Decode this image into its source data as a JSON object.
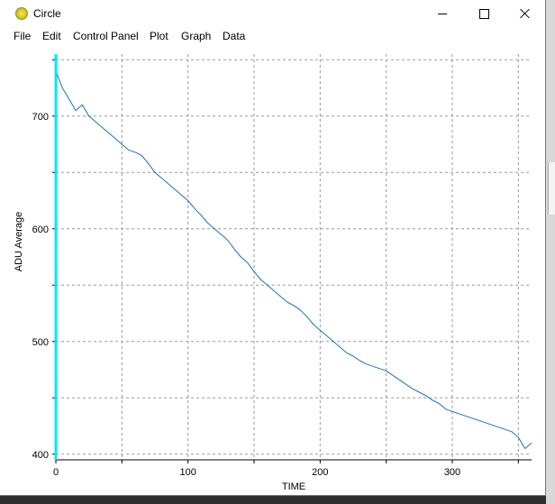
{
  "window": {
    "title": "Circle",
    "icon": "circle-app-icon"
  },
  "menu": [
    "File",
    "Edit",
    "Control Panel",
    "Plot",
    "Graph",
    "Data"
  ],
  "chart_data": {
    "type": "line",
    "title": "",
    "xlabel": "TIME",
    "ylabel": "ADU Average",
    "xlim": [
      0,
      360
    ],
    "ylim": [
      395,
      755
    ],
    "x_ticks": [
      0,
      100,
      200,
      300
    ],
    "y_ticks": [
      400,
      500,
      600,
      700
    ],
    "grid": true,
    "grid_style": "dashed",
    "series": [
      {
        "color": "#1f6fbf",
        "x": [
          0,
          5,
          10,
          15,
          20,
          25,
          30,
          35,
          40,
          45,
          50,
          55,
          60,
          65,
          70,
          75,
          80,
          85,
          90,
          95,
          100,
          105,
          110,
          115,
          120,
          125,
          130,
          135,
          140,
          145,
          150,
          155,
          160,
          165,
          170,
          175,
          180,
          185,
          190,
          195,
          200,
          205,
          210,
          215,
          220,
          225,
          230,
          235,
          240,
          245,
          250,
          255,
          260,
          265,
          270,
          275,
          280,
          285,
          290,
          295,
          300,
          305,
          310,
          315,
          320,
          325,
          330,
          335,
          340,
          345,
          350,
          355,
          360
        ],
        "y": [
          740,
          725,
          715,
          705,
          710,
          700,
          695,
          690,
          685,
          680,
          675,
          670,
          668,
          665,
          658,
          650,
          645,
          640,
          635,
          630,
          625,
          618,
          612,
          605,
          600,
          595,
          590,
          582,
          575,
          570,
          562,
          555,
          550,
          545,
          540,
          535,
          532,
          528,
          522,
          515,
          510,
          505,
          500,
          495,
          490,
          487,
          483,
          480,
          478,
          476,
          474,
          470,
          466,
          462,
          458,
          455,
          452,
          448,
          445,
          440,
          438,
          436,
          434,
          432,
          430,
          428,
          426,
          424,
          422,
          420,
          415,
          405,
          410
        ]
      },
      {
        "color": "#00e5ff",
        "x": [
          0,
          0
        ],
        "y": [
          395,
          755
        ]
      }
    ]
  },
  "desktop_colors": {
    "window_bg": "#ffffff",
    "trace": "#1f6fbf",
    "marker": "#00e5ff"
  }
}
